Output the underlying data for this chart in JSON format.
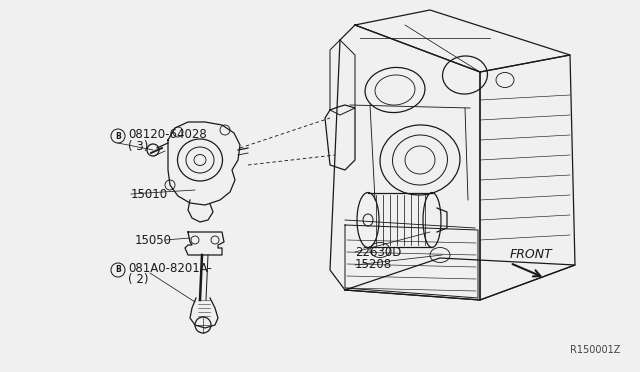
{
  "bg_color": "#f0f0f0",
  "line_color": "#1a1a1a",
  "fig_width": 6.4,
  "fig_height": 3.72,
  "dpi": 100,
  "watermark": "R150001Z",
  "label_bolt1_text": "08120-64028",
  "label_bolt1_qty": "( 3)",
  "label_15010": "15010",
  "label_15050": "15050",
  "label_bolt2_text": "081A0-8201A-",
  "label_bolt2_qty": "( 2)",
  "label_22630": "22630D",
  "label_15208": "15208",
  "label_front": "FRONT"
}
